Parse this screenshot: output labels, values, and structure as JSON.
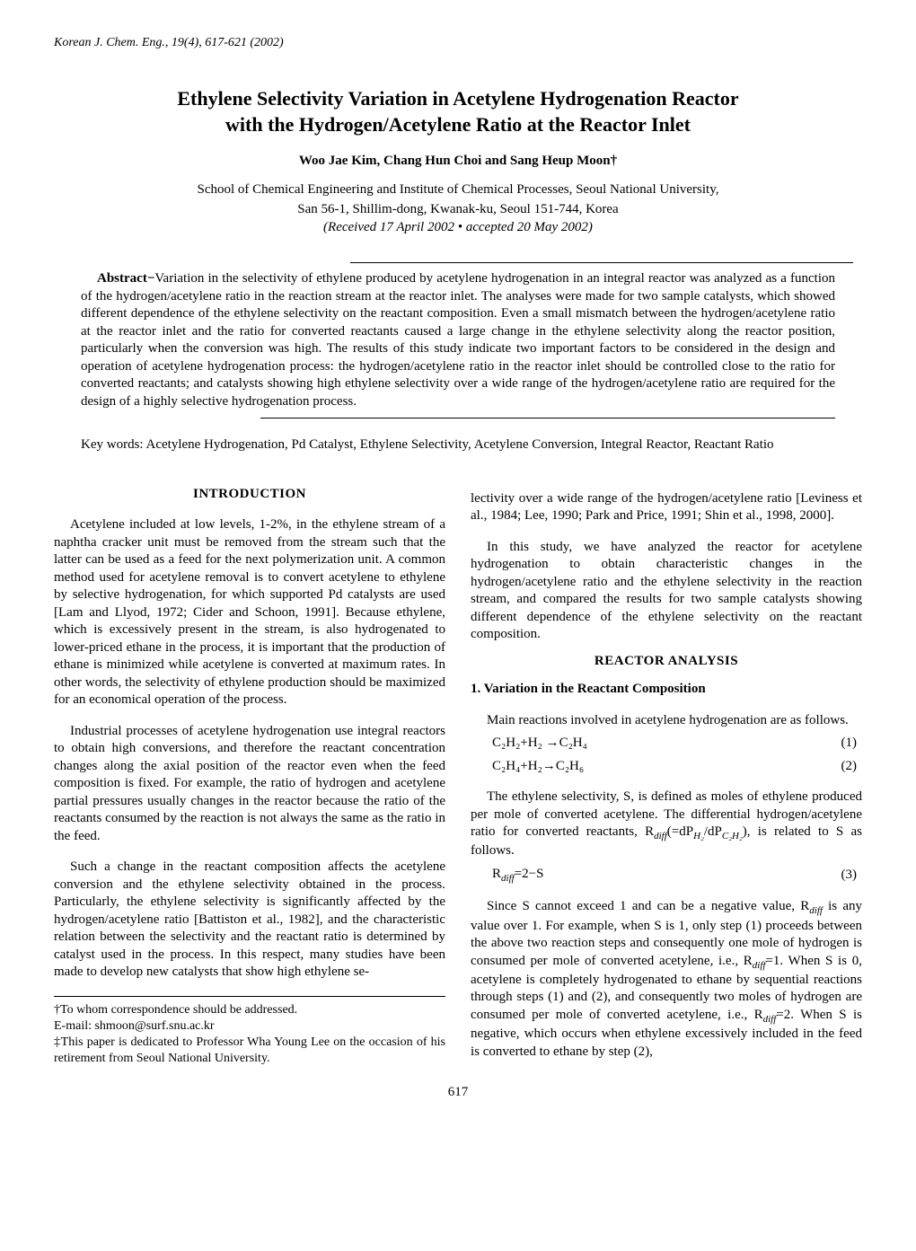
{
  "journal_header": "Korean J. Chem. Eng., 19(4), 617-621 (2002)",
  "title_line1": "Ethylene Selectivity Variation in Acetylene Hydrogenation Reactor",
  "title_line2": "with the Hydrogen/Acetylene Ratio at the Reactor Inlet",
  "authors": "Woo Jae Kim, Chang Hun Choi and Sang Heup Moon†",
  "affiliation_line1": "School of Chemical Engineering and Institute of Chemical Processes, Seoul National University,",
  "affiliation_line2": "San 56-1, Shillim-dong, Kwanak-ku, Seoul 151-744, Korea",
  "dates": "(Received 17 April 2002 • accepted 20 May 2002)",
  "abstract_label": "Abstract−",
  "abstract_text": "Variation in the selectivity of ethylene produced by acetylene hydrogenation in an integral reactor was analyzed as a function of the hydrogen/acetylene ratio in the reaction stream at the reactor inlet. The analyses were made for two sample catalysts, which showed different dependence of the ethylene selectivity on the reactant composition. Even a small mismatch between the hydrogen/acetylene ratio at the reactor inlet and the ratio for converted reactants caused a large change in the ethylene selectivity along the reactor position, particularly when the conversion was high. The results of this study indicate two important factors to be considered in the design and operation of acetylene hydrogenation process: the hydrogen/acetylene ratio in the reactor inlet should be controlled close to the ratio for converted reactants; and catalysts showing high ethylene selectivity over a wide range of the hydrogen/acetylene ratio are required for the design of a highly selective hydrogenation process.",
  "keywords_label": "Key words: ",
  "keywords_text": "Acetylene Hydrogenation, Pd Catalyst, Ethylene Selectivity, Acetylene Conversion, Integral Reactor, Reactant Ratio",
  "section1_head": "INTRODUCTION",
  "intro_p1": "Acetylene included at low levels, 1-2%, in the ethylene stream of a naphtha cracker unit must be removed from the stream such that the latter can be used as a feed for the next polymerization unit. A common method used for acetylene removal is to convert acetylene to ethylene by selective hydrogenation, for which supported Pd catalysts are used [Lam and Llyod, 1972; Cider and Schoon, 1991]. Because ethylene, which is excessively present in the stream, is also hydrogenated to lower-priced ethane in the process, it is important that the production of ethane is minimized while acetylene is converted at maximum rates. In other words, the selectivity of ethylene production should be maximized for an economical operation of the process.",
  "intro_p2": "Industrial processes of acetylene hydrogenation use integral reactors to obtain high conversions, and therefore the reactant concentration changes along the axial position of the reactor even when the feed composition is fixed. For example, the ratio of hydrogen and acetylene partial pressures usually changes in the reactor because the ratio of the reactants consumed by the reaction is not always the same as the ratio in the feed.",
  "intro_p3": "Such a change in the reactant composition affects the acetylene conversion and the ethylene selectivity obtained in the process. Particularly, the ethylene selectivity is significantly affected by the hydrogen/acetylene ratio [Battiston et al., 1982], and the characteristic relation between the selectivity and the reactant ratio is determined by catalyst used in the process. In this respect, many studies have been made to develop new catalysts that show high ethylene se-",
  "right_p1": "lectivity over a wide range of the hydrogen/acetylene ratio [Leviness et al., 1984; Lee, 1990; Park and Price, 1991; Shin et al., 1998, 2000].",
  "right_p2": "In this study, we have analyzed the reactor for acetylene hydrogenation to obtain characteristic changes in the hydrogen/acetylene ratio and the ethylene selectivity in the reaction stream, and compared the results for two sample catalysts showing different dependence of the ethylene selectivity on the reactant composition.",
  "section2_head": "REACTOR ANALYSIS",
  "subsection_head": "1. Variation in the Reactant Composition",
  "sub_p1": "Main reactions involved in acetylene hydrogenation are as follows.",
  "eq1": "C₂H₂+H₂ →C₂H₄",
  "eq1_num": "(1)",
  "eq2": "C₂H₄+H₂→C₂H₆",
  "eq2_num": "(2)",
  "sub_p2a": "The ethylene selectivity, S, is defined as moles of ethylene produced per mole of converted acetylene. The differential hydrogen/acetylene ratio for converted reactants, R",
  "sub_p2b": "(=dP",
  "sub_p2c": "/dP",
  "sub_p2d": "), is related to S as follows.",
  "eq3_pre": "R",
  "eq3_post": "=2−S",
  "eq3_num": "(3)",
  "sub_p3a": "Since S cannot exceed 1 and can be a negative value, R",
  "sub_p3b": " is any value over 1. For example, when S is 1, only step (1) proceeds between the above two reaction steps and consequently one mole of hydrogen is consumed per mole of converted acetylene, i.e., R",
  "sub_p3c": "=1. When S is 0, acetylene is completely hydrogenated to ethane by sequential reactions through steps (1) and (2), and consequently two moles of hydrogen are consumed per mole of converted acetylene, i.e., R",
  "sub_p3d": "=2. When S is negative, which occurs when ethylene excessively included in the feed is converted to ethane by step (2),",
  "footnote1": "†To whom correspondence should be addressed.",
  "footnote2": "E-mail: shmoon@surf.snu.ac.kr",
  "footnote3": "‡This paper is dedicated to Professor Wha Young Lee on the occasion of his retirement from Seoul National University.",
  "page_number": "617",
  "diff_sub": "diff",
  "h2_sub": "H₂",
  "c2h2_sub": "C₂H₂",
  "colors": {
    "text": "#000000",
    "bg": "#ffffff",
    "rule": "#000000"
  },
  "typography": {
    "body_font": "Times New Roman",
    "body_size_pt": 11,
    "title_size_pt": 16,
    "title_weight": "bold"
  }
}
